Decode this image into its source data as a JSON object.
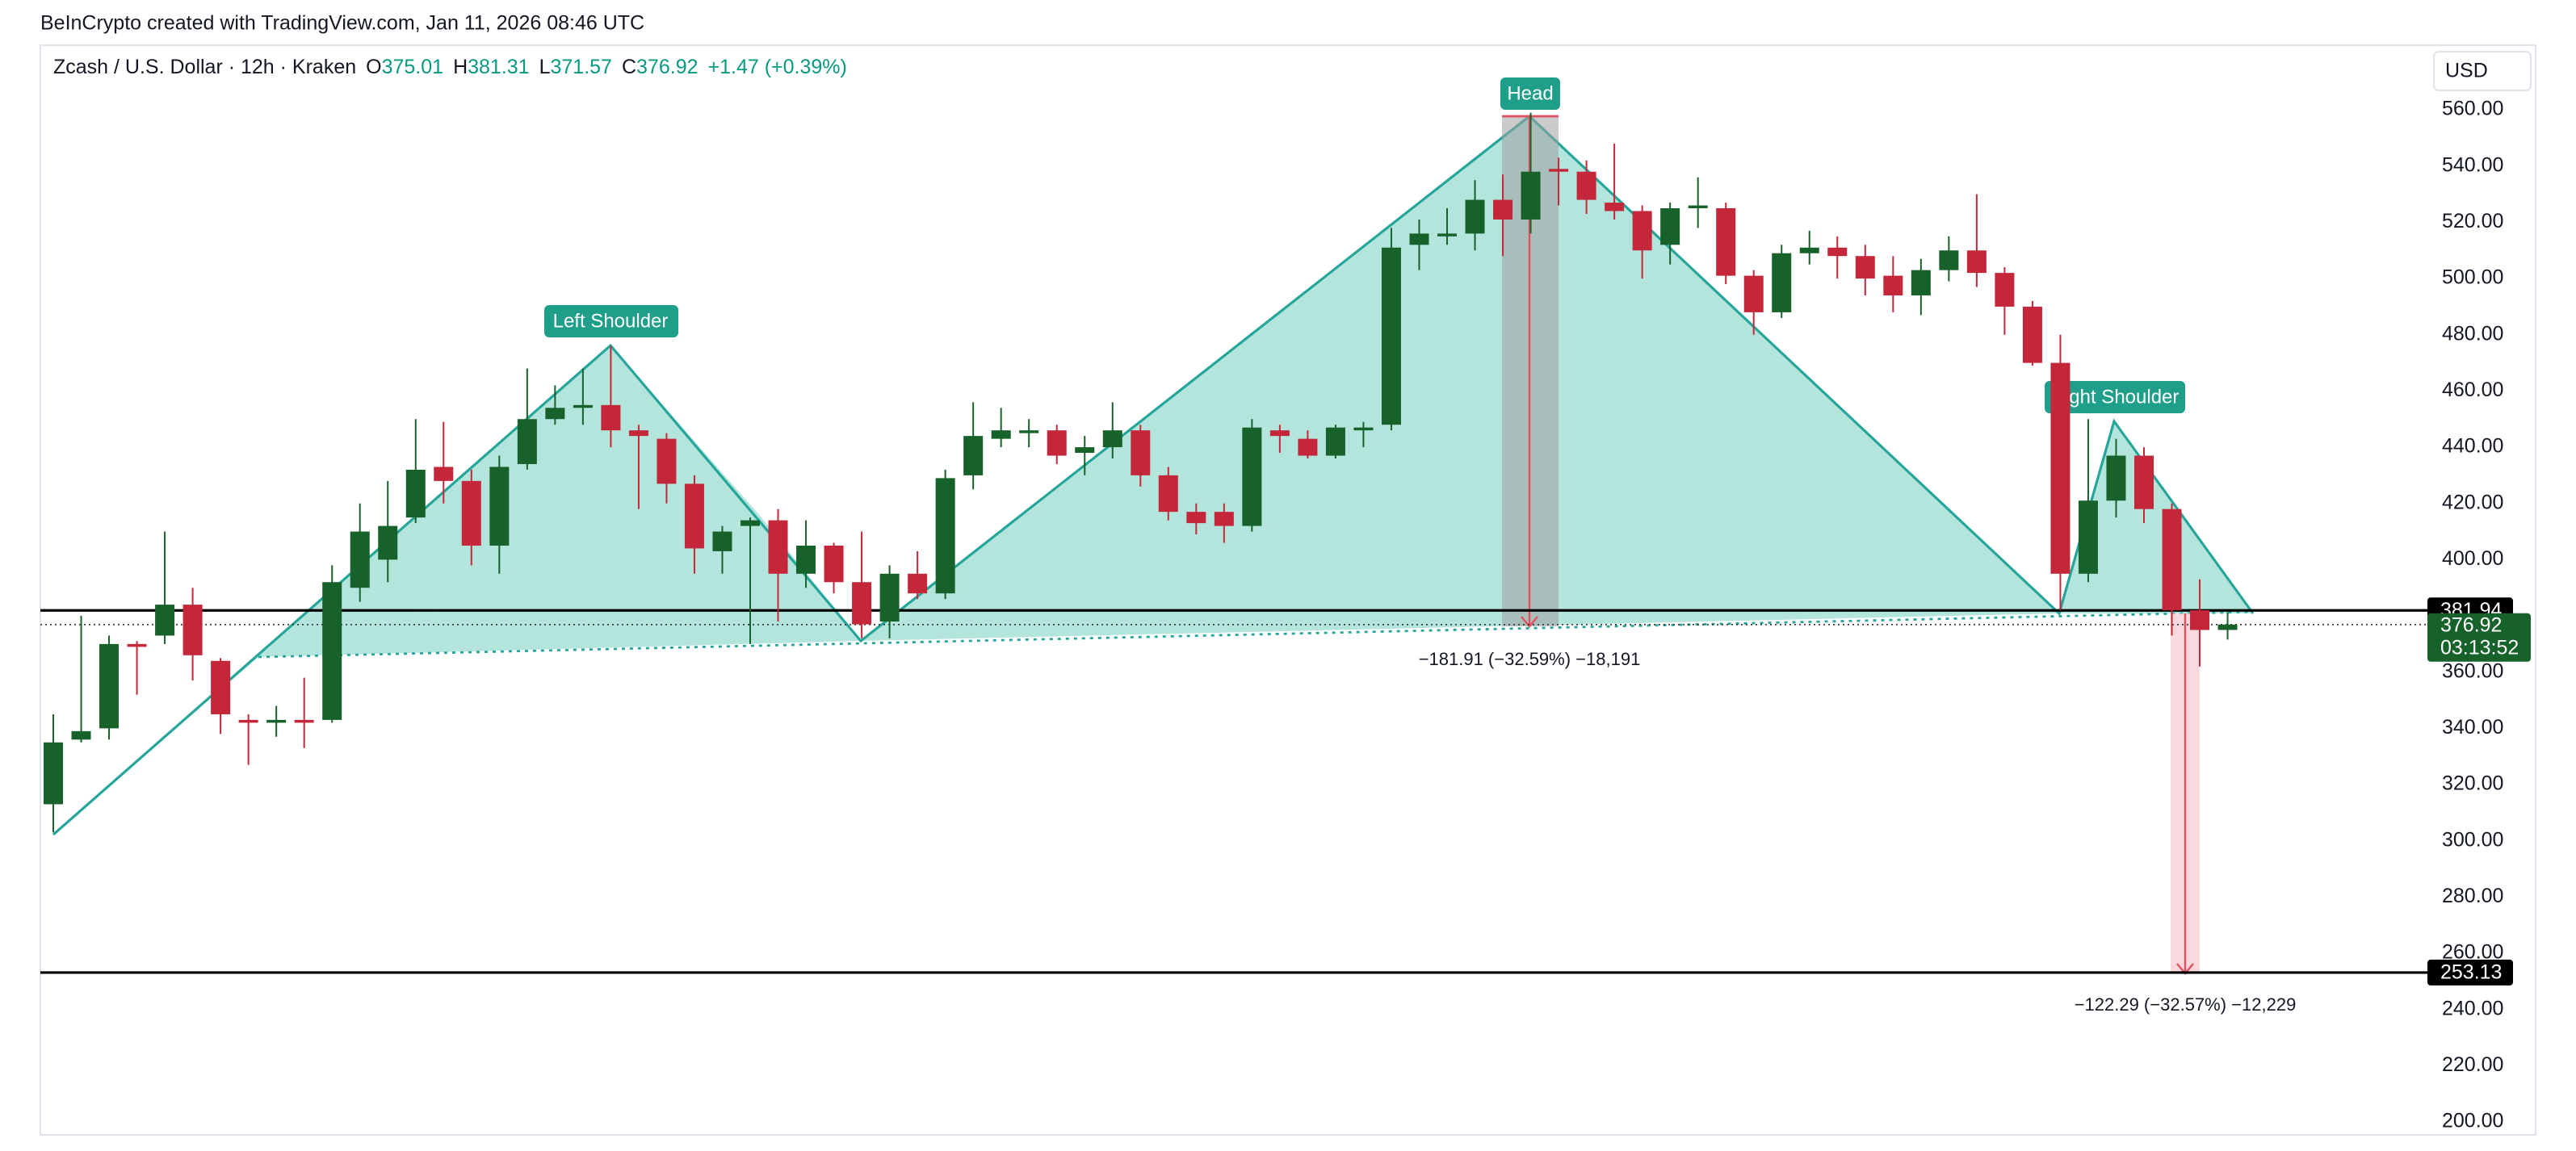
{
  "header": {
    "credit": "BeInCrypto created with TradingView.com, Jan 11, 2026 08:46 UTC"
  },
  "chart_data": {
    "type": "candlestick",
    "symbol": "Zcash / U.S. Dollar · 12h · Kraken",
    "ohlc_legend": [
      {
        "label": "O",
        "value": 375.01
      },
      {
        "label": "H",
        "value": 381.31
      },
      {
        "label": "L",
        "value": 371.57
      },
      {
        "label": "C",
        "value": 376.92
      }
    ],
    "change": "+1.47 (+0.39%)",
    "currency": "USD",
    "up_color": "#17612a",
    "down_color": "#c4273a",
    "open": [
      313,
      336,
      340,
      370,
      373,
      384,
      364,
      343,
      342,
      343,
      343,
      390,
      400,
      415,
      433,
      428,
      405,
      434,
      450,
      454,
      455,
      446,
      443,
      427,
      403,
      412,
      414,
      395,
      405,
      392,
      378,
      395,
      388,
      430,
      443,
      445,
      446,
      438,
      440,
      446,
      430,
      417,
      417,
      412,
      446,
      443,
      437,
      446,
      448,
      512,
      515,
      516,
      528,
      521,
      539,
      538,
      527,
      524,
      512,
      525,
      525,
      501,
      488,
      509,
      511,
      508,
      501,
      494,
      503,
      510,
      502,
      490,
      470,
      395,
      421,
      437,
      418,
      382,
      375.01
    ],
    "high": [
      345,
      380,
      373,
      371,
      410,
      390,
      365,
      345,
      348,
      358,
      398,
      420,
      428,
      450,
      449,
      432,
      437,
      468,
      462,
      468,
      476,
      448,
      445,
      430,
      412,
      415,
      418,
      414,
      406,
      410,
      398,
      403,
      432,
      456,
      454,
      450,
      448,
      444,
      456,
      448,
      433,
      420,
      420,
      450,
      448,
      446,
      448,
      449,
      518,
      521,
      525,
      535,
      537,
      559,
      543,
      542,
      548,
      526,
      527,
      536,
      527,
      503,
      512,
      517,
      515,
      512,
      508,
      507,
      515,
      530,
      504,
      492,
      480,
      450,
      443,
      440,
      420,
      393,
      381.31
    ],
    "low": [
      303,
      335,
      336,
      352,
      370,
      357,
      338,
      327,
      337,
      333,
      342,
      385,
      392,
      413,
      420,
      398,
      395,
      432,
      448,
      448,
      440,
      418,
      420,
      395,
      395,
      370,
      378,
      390,
      388,
      372,
      372,
      386,
      386,
      425,
      440,
      440,
      434,
      430,
      436,
      426,
      414,
      409,
      406,
      410,
      438,
      436,
      436,
      440,
      446,
      503,
      512,
      510,
      508,
      516,
      526,
      523,
      521,
      500,
      505,
      518,
      498,
      480,
      486,
      505,
      500,
      494,
      488,
      487,
      499,
      497,
      480,
      469,
      382,
      392,
      415,
      413,
      373,
      362,
      371.57
    ],
    "close": [
      335,
      339,
      370,
      369,
      384,
      366,
      345,
      342,
      343,
      342,
      392,
      410,
      412,
      432,
      428,
      405,
      433,
      450,
      454,
      455,
      446,
      444,
      427,
      404,
      410,
      414,
      395,
      405,
      392,
      377,
      395,
      388,
      429,
      444,
      446,
      446,
      437,
      440,
      446,
      430,
      417,
      413,
      412,
      447,
      444,
      437,
      447,
      447,
      511,
      516,
      516,
      528,
      521,
      538,
      538,
      528,
      524,
      510,
      525,
      526,
      501,
      488,
      509,
      511,
      508,
      500,
      494,
      503,
      510,
      502,
      490,
      470,
      395,
      421,
      437,
      418,
      382,
      375,
      376.92
    ],
    "ylim": [
      195.4,
      583
    ],
    "yticks": [
      {
        "value": 200,
        "label": "200.00"
      },
      {
        "value": 220,
        "label": "220.00"
      },
      {
        "value": 240,
        "label": "240.00"
      },
      {
        "value": 260,
        "label": "260.00"
      },
      {
        "value": 280,
        "label": "280.00"
      },
      {
        "value": 300,
        "label": "300.00"
      },
      {
        "value": 320,
        "label": "320.00"
      },
      {
        "value": 340,
        "label": "340.00"
      },
      {
        "value": 360,
        "label": "360.00"
      },
      {
        "value": 380,
        "label": "380.00"
      },
      {
        "value": 400,
        "label": "400.00"
      },
      {
        "value": 420,
        "label": "420.00"
      },
      {
        "value": 440,
        "label": "440.00"
      },
      {
        "value": 460,
        "label": "460.00"
      },
      {
        "value": 480,
        "label": "480.00"
      },
      {
        "value": 500,
        "label": "500.00"
      },
      {
        "value": 520,
        "label": "520.00"
      },
      {
        "value": 540,
        "label": "540.00"
      },
      {
        "value": 560,
        "label": "560.00"
      }
    ],
    "grid": false,
    "neckline": 381.94,
    "target": 253.13,
    "last_price": 376.92,
    "countdown": "03:13:52",
    "annotations": {
      "left": "Left Shoulder",
      "head": "Head",
      "right": "Right Shoulder",
      "head_measure": "−181.91 (−32.59%) −18,191",
      "target_measure": "−122.29 (−32.57%) −12,229"
    }
  }
}
